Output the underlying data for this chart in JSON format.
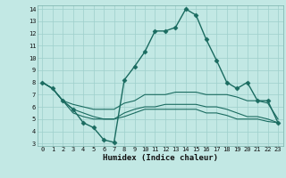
{
  "xlabel": "Humidex (Indice chaleur)",
  "ylabel": "",
  "bg_color": "#c2e8e4",
  "grid_color": "#9ecfcb",
  "line_color": "#1a6b60",
  "xlim": [
    -0.5,
    23.5
  ],
  "ylim": [
    2.8,
    14.3
  ],
  "xticks": [
    0,
    1,
    2,
    3,
    4,
    5,
    6,
    7,
    8,
    9,
    10,
    11,
    12,
    13,
    14,
    15,
    16,
    17,
    18,
    19,
    20,
    21,
    22,
    23
  ],
  "yticks": [
    3,
    4,
    5,
    6,
    7,
    8,
    9,
    10,
    11,
    12,
    13,
    14
  ],
  "lines": [
    {
      "x": [
        0,
        1,
        2,
        3,
        4,
        5,
        6,
        7,
        8,
        9,
        10,
        11,
        12,
        13,
        14,
        15,
        16,
        17,
        18,
        19,
        20,
        21,
        22,
        23
      ],
      "y": [
        8.0,
        7.5,
        6.5,
        5.8,
        4.7,
        4.3,
        3.3,
        3.1,
        8.2,
        9.3,
        10.5,
        12.2,
        12.2,
        12.5,
        14.0,
        13.5,
        11.5,
        9.8,
        8.0,
        7.5,
        8.0,
        6.5,
        6.5,
        4.7
      ],
      "marker": "D",
      "markersize": 2.5,
      "lw": 1.0
    },
    {
      "x": [
        0,
        1,
        2,
        3,
        4,
        5,
        6,
        7,
        8,
        9,
        10,
        11,
        12,
        13,
        14,
        15,
        16,
        17,
        18,
        19,
        20,
        21,
        22,
        23
      ],
      "y": [
        8.0,
        7.5,
        6.5,
        6.2,
        6.0,
        5.8,
        5.8,
        5.8,
        6.3,
        6.5,
        7.0,
        7.0,
        7.0,
        7.2,
        7.2,
        7.2,
        7.0,
        7.0,
        7.0,
        6.8,
        6.5,
        6.5,
        6.3,
        5.0
      ],
      "marker": null,
      "markersize": 0,
      "lw": 0.8
    },
    {
      "x": [
        0,
        1,
        2,
        3,
        4,
        5,
        6,
        7,
        8,
        9,
        10,
        11,
        12,
        13,
        14,
        15,
        16,
        17,
        18,
        19,
        20,
        21,
        22,
        23
      ],
      "y": [
        8.0,
        7.5,
        6.5,
        5.8,
        5.5,
        5.2,
        5.0,
        5.0,
        5.5,
        5.8,
        6.0,
        6.0,
        6.2,
        6.2,
        6.2,
        6.2,
        6.0,
        6.0,
        5.8,
        5.5,
        5.2,
        5.2,
        5.0,
        4.7
      ],
      "marker": null,
      "markersize": 0,
      "lw": 0.8
    },
    {
      "x": [
        0,
        1,
        2,
        3,
        4,
        5,
        6,
        7,
        8,
        9,
        10,
        11,
        12,
        13,
        14,
        15,
        16,
        17,
        18,
        19,
        20,
        21,
        22,
        23
      ],
      "y": [
        8.0,
        7.5,
        6.5,
        5.5,
        5.2,
        5.0,
        5.0,
        5.0,
        5.2,
        5.5,
        5.8,
        5.8,
        5.8,
        5.8,
        5.8,
        5.8,
        5.5,
        5.5,
        5.3,
        5.0,
        5.0,
        5.0,
        4.8,
        4.7
      ],
      "marker": null,
      "markersize": 0,
      "lw": 0.8
    }
  ]
}
